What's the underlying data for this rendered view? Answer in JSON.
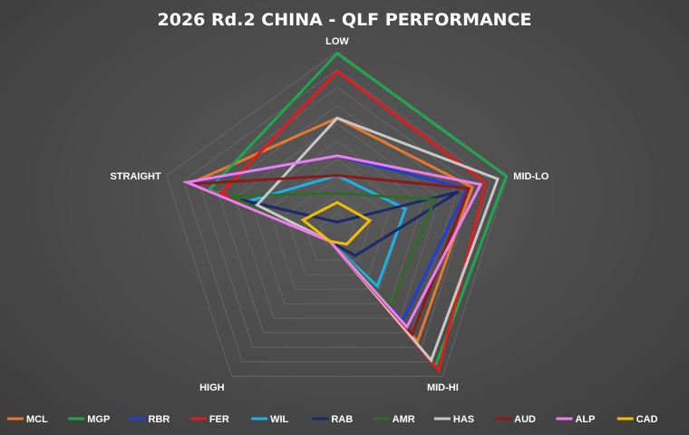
{
  "chart_data": {
    "type": "radar",
    "title": "2026 Rd.2 CHINA - QLF PERFORMANCE",
    "axes": [
      "LOW",
      "MID-LO",
      "MID-HI",
      "HIGH",
      "STRAIGHT"
    ],
    "range": [
      0,
      10
    ],
    "grid": true,
    "grid_levels": 10,
    "legend_position": "bottom",
    "series": [
      {
        "name": "MCL",
        "color": "#e8782c",
        "values": [
          6.3,
          7.9,
          7.6,
          0.7,
          8.6
        ]
      },
      {
        "name": "MGP",
        "color": "#1ea84e",
        "values": [
          9.9,
          9.9,
          9.3,
          0.7,
          7.5
        ]
      },
      {
        "name": "RBR",
        "color": "#1e3fd6",
        "values": [
          4.2,
          7.6,
          6.2,
          0.7,
          8.7
        ]
      },
      {
        "name": "FER",
        "color": "#e51a1a",
        "values": [
          8.9,
          8.7,
          9.6,
          0.7,
          6.8
        ]
      },
      {
        "name": "WIL",
        "color": "#1ab2e8",
        "values": [
          3.1,
          4.0,
          3.8,
          0.7,
          5.3
        ]
      },
      {
        "name": "RAB",
        "color": "#1a2a6a",
        "values": [
          0.5,
          7.1,
          1.7,
          0.7,
          5.7
        ]
      },
      {
        "name": "AMR",
        "color": "#2e6b26",
        "values": [
          2.1,
          5.7,
          5.1,
          0.7,
          6.3
        ]
      },
      {
        "name": "HAS",
        "color": "#c8c8c8",
        "values": [
          6.3,
          9.4,
          8.9,
          0.7,
          4.7
        ]
      },
      {
        "name": "AUD",
        "color": "#8b1a1a",
        "values": [
          3.1,
          7.7,
          7.1,
          0.7,
          8.5
        ]
      },
      {
        "name": "ALP",
        "color": "#ef7cf0",
        "values": [
          4.2,
          8.4,
          6.6,
          0.7,
          8.8
        ]
      },
      {
        "name": "CAD",
        "color": "#f2bf00",
        "values": [
          1.6,
          1.9,
          0.9,
          0.7,
          2.0
        ]
      }
    ]
  }
}
